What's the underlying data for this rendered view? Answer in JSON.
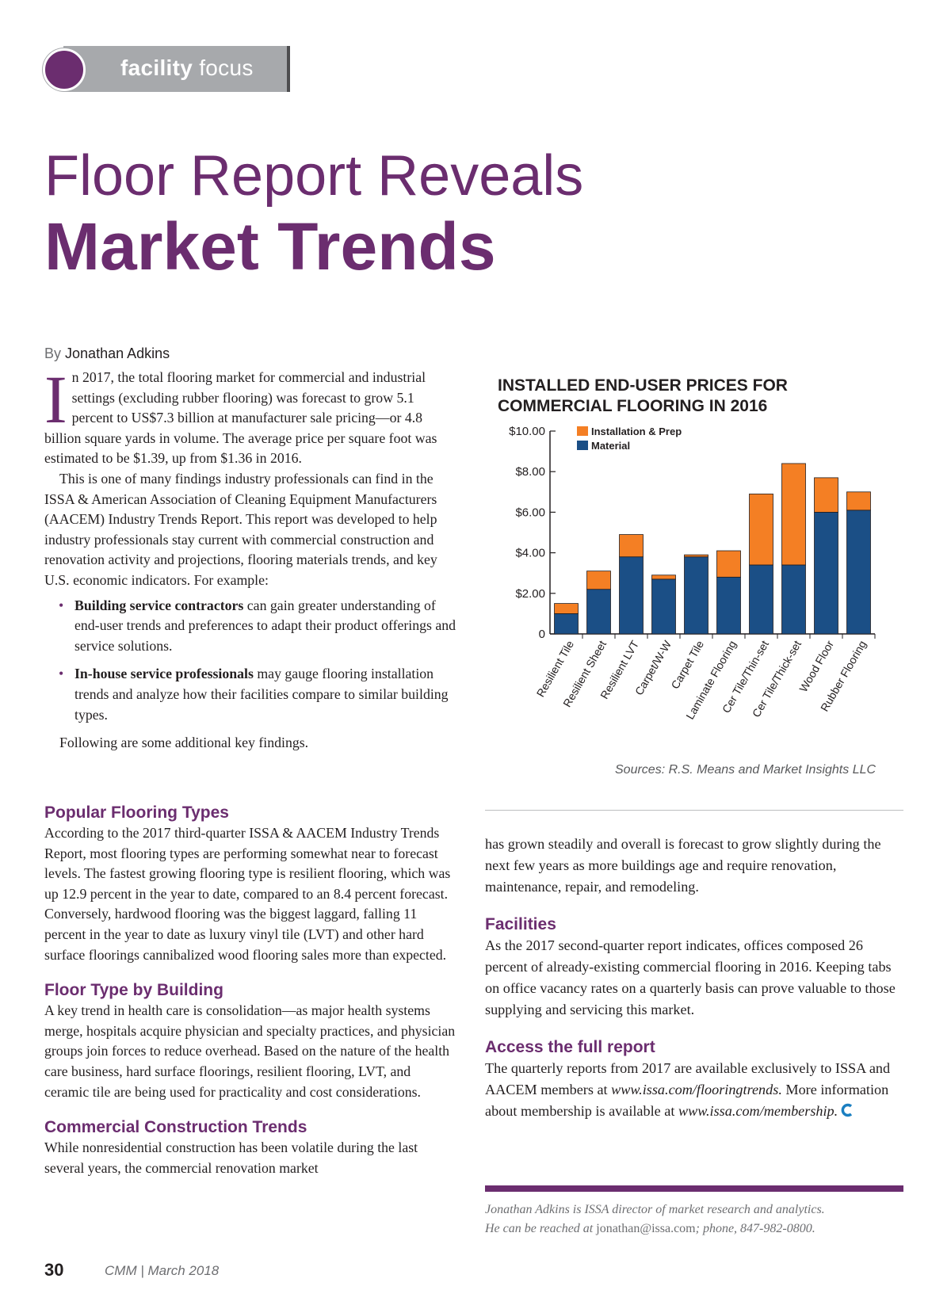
{
  "header": {
    "section_bold": "facility",
    "section_light": "focus"
  },
  "article": {
    "title_line1": "Floor Report Reveals",
    "title_line2": "Market Trends",
    "byline_prefix": "By",
    "author": "Jonathan Adkins"
  },
  "intro": {
    "dropcap": "I",
    "p1": "n 2017, the total flooring market for commercial and industrial settings (excluding rubber flooring) was forecast to grow 5.1 percent to US$7.3 billion at manufacturer sale pricing—or 4.8 billion square yards in volume. The average price per square foot was estimated to be $1.39, up from $1.36 in 2016.",
    "p2": "This is one of many findings industry professionals can find in the ISSA & American Association of Cleaning Equipment Manufacturers (AACEM) Industry Trends Report. This report was developed to help industry professionals stay current with commercial construction and renovation activity and projections, flooring materials trends, and key U.S. economic indicators. For example:",
    "bullet1_bold": "Building service contractors",
    "bullet1_text": " can gain greater understanding of end-user trends and preferences to adapt their product offerings and service solutions.",
    "bullet2_bold": "In-house service professionals",
    "bullet2_text": " may gauge flooring installation trends and analyze how their facilities compare to similar building types.",
    "p3": "Following are some additional key findings."
  },
  "sections": {
    "popular_heading": "Popular Flooring Types",
    "popular_text": "According to the 2017 third-quarter ISSA & AACEM Industry Trends Report, most flooring types are performing somewhat near to forecast levels. The fastest growing flooring type is resilient flooring, which was up 12.9 percent in the year to date, compared to an 8.4 percent forecast. Conversely, hardwood flooring was the biggest laggard, falling 11 percent in the year to date as luxury vinyl tile (LVT) and other hard surface floorings cannibalized wood flooring sales more than expected.",
    "building_heading": "Floor Type by Building",
    "building_text": "A key trend in health care is consolidation—as major health systems merge, hospitals acquire physician and specialty practices, and physician groups join forces to reduce overhead. Based on the nature of the health care business, hard surface floorings, resilient flooring, LVT, and ceramic tile are being used for practicality and cost considerations.",
    "construction_heading": "Commercial Construction Trends",
    "construction_text": "While nonresidential construction has been volatile during the last several years, the commercial renovation market",
    "construction_cont": "has grown steadily and overall is forecast to grow slightly during the next few years as more buildings age and require renovation, maintenance, repair, and remodeling.",
    "facilities_heading": "Facilities",
    "facilities_text": "As the 2017 second-quarter report indicates, offices composed 26 percent of already-existing commercial flooring in 2016. Keeping tabs on office vacancy rates on a quarterly basis can prove valuable to those supplying and servicing this market.",
    "access_heading": "Access the full report",
    "access_text1": "The quarterly reports from 2017 are available exclusively to ISSA and AACEM members at ",
    "access_link1": "www.issa.com/flooringtrends.",
    "access_text2": " More information about membership is available at ",
    "access_link2": "www.issa.com/membership."
  },
  "footer": {
    "bio_line1": "Jonathan Adkins is ISSA director of market research and analytics.",
    "bio_line2_prefix": "He can be reached at ",
    "bio_email": "jonathan@issa.com",
    "bio_line2_suffix": "; phone, 847-982-0800.",
    "page_number": "30",
    "publication": "CMM | March 2018"
  },
  "colors": {
    "accent": "#6b2d6f",
    "installation": "#f47f24",
    "material": "#1b4f86"
  },
  "chart_data": {
    "type": "bar",
    "stacked": true,
    "title_line1": "INSTALLED END-USER PRICES FOR",
    "title_line2": "COMMERCIAL FLOORING IN 2016",
    "categories": [
      "Resilient Tile",
      "Resilient Sheet",
      "Resilient LVT",
      "Carpet/W-W",
      "Carpet Tile",
      "Laminate Flooring",
      "Cer Tile/Thin-set",
      "Cer Tile/Thick-set",
      "Wood Floor",
      "Rubber Flooring"
    ],
    "series": [
      {
        "name": "Material",
        "color": "#1b4f86",
        "values": [
          1.0,
          2.2,
          3.8,
          2.7,
          3.8,
          2.8,
          3.4,
          3.4,
          6.0,
          6.1
        ]
      },
      {
        "name": "Installation & Prep",
        "color": "#f47f24",
        "values": [
          0.5,
          0.9,
          1.1,
          0.2,
          0.1,
          1.3,
          3.5,
          5.0,
          1.7,
          0.9
        ]
      }
    ],
    "legend_order": [
      "Installation & Prep",
      "Material"
    ],
    "ylim": [
      0,
      10
    ],
    "yticks": [
      0,
      2,
      4,
      6,
      8,
      10
    ],
    "ytick_labels": [
      "0",
      "$2.00",
      "$4.00",
      "$6.00",
      "$8.00",
      "$10.00"
    ],
    "legend_position": "top-left",
    "grid": false,
    "source": "Sources: R.S. Means and Market Insights LLC"
  }
}
